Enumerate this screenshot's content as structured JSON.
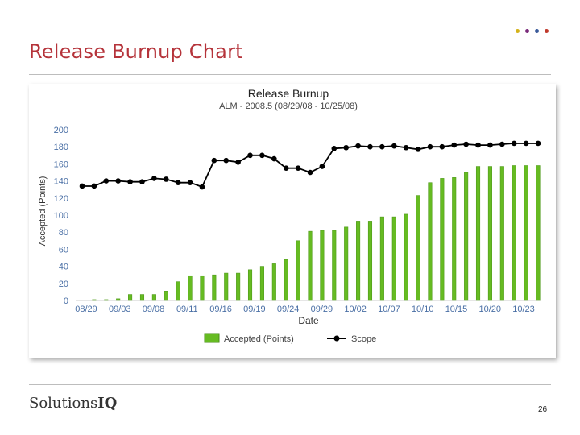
{
  "slide": {
    "title": "Release Burnup Chart",
    "page_number": "26",
    "logo_text_a": "Solutions",
    "logo_text_b": "IQ",
    "logo_mark": "···",
    "dot_colors": [
      "#d4b21a",
      "#7a2a7a",
      "#3a5a9a",
      "#c0392b"
    ]
  },
  "chart_data": {
    "type": "bar",
    "title": "Release Burnup",
    "subtitle": "ALM - 2008.5 (08/29/08 - 10/25/08)",
    "xlabel": "Date",
    "ylabel": "Accepted (Points)",
    "ylim": [
      0,
      200
    ],
    "yticks": [
      0,
      20,
      40,
      60,
      80,
      100,
      120,
      140,
      160,
      180,
      200
    ],
    "xtick_labels": [
      "08/29",
      "09/03",
      "09/08",
      "09/11",
      "09/16",
      "09/19",
      "09/24",
      "09/29",
      "10/02",
      "10/07",
      "10/10",
      "10/15",
      "10/20",
      "10/23"
    ],
    "grid": false,
    "legend_position": "bottom",
    "series": [
      {
        "name": "Accepted (Points)",
        "kind": "bar",
        "color": "#66bb22",
        "values": [
          0,
          1,
          1,
          2,
          7,
          7,
          7,
          11,
          22,
          29,
          29,
          30,
          32,
          32,
          36,
          40,
          43,
          48,
          70,
          81,
          82,
          82,
          86,
          93,
          93,
          98,
          98,
          101,
          123,
          138,
          143,
          144,
          150,
          157,
          157,
          157,
          158,
          158,
          158
        ]
      },
      {
        "name": "Scope",
        "kind": "line",
        "color": "#000000",
        "values": [
          134,
          134,
          140,
          140,
          139,
          139,
          143,
          142,
          138,
          138,
          133,
          164,
          164,
          162,
          170,
          170,
          166,
          155,
          155,
          150,
          157,
          178,
          179,
          181,
          180,
          180,
          181,
          179,
          177,
          180,
          180,
          182,
          183,
          182,
          182,
          183,
          184,
          184,
          184
        ]
      }
    ]
  }
}
